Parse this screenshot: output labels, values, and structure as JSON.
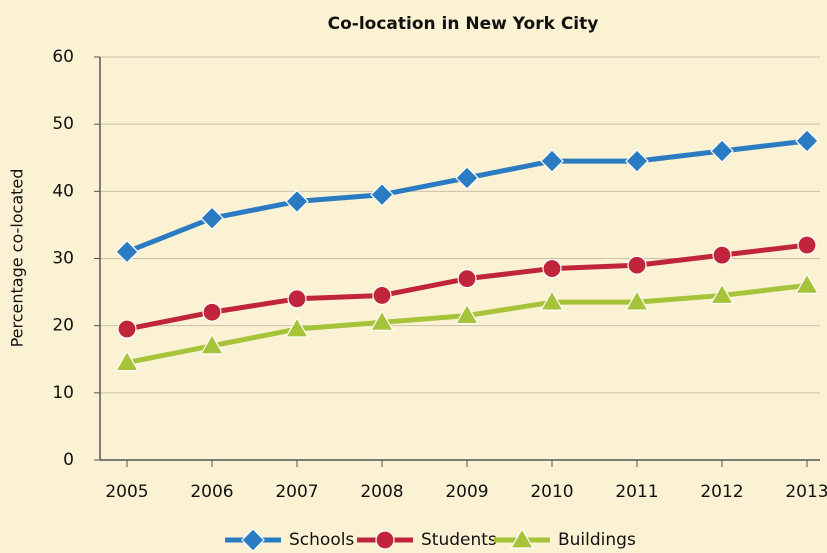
{
  "chart_data": {
    "type": "line",
    "title": "Co-location in New York City",
    "y_label": "Percentage co-located",
    "categories": [
      "2005",
      "2006",
      "2007",
      "2008",
      "2009",
      "2010",
      "2011",
      "2012",
      "2013"
    ],
    "series": [
      {
        "name": "Schools",
        "color": "#2b7bc3",
        "marker": "diamond",
        "values": [
          31,
          36,
          38.5,
          39.5,
          42,
          44.5,
          44.5,
          46,
          47.5
        ]
      },
      {
        "name": "Students",
        "color": "#c1253b",
        "marker": "circle",
        "values": [
          19.5,
          22,
          24,
          24.5,
          27,
          28.5,
          29,
          30.5,
          32
        ]
      },
      {
        "name": "Buildings",
        "color": "#a6c339",
        "marker": "triangle",
        "values": [
          14.5,
          17,
          19.5,
          20.5,
          21.5,
          23.5,
          23.5,
          24.5,
          26
        ]
      }
    ],
    "ylim": [
      0,
      60
    ],
    "yticks": [
      0,
      10,
      20,
      30,
      40,
      50,
      60
    ],
    "grid": true,
    "legend": "bottom"
  }
}
